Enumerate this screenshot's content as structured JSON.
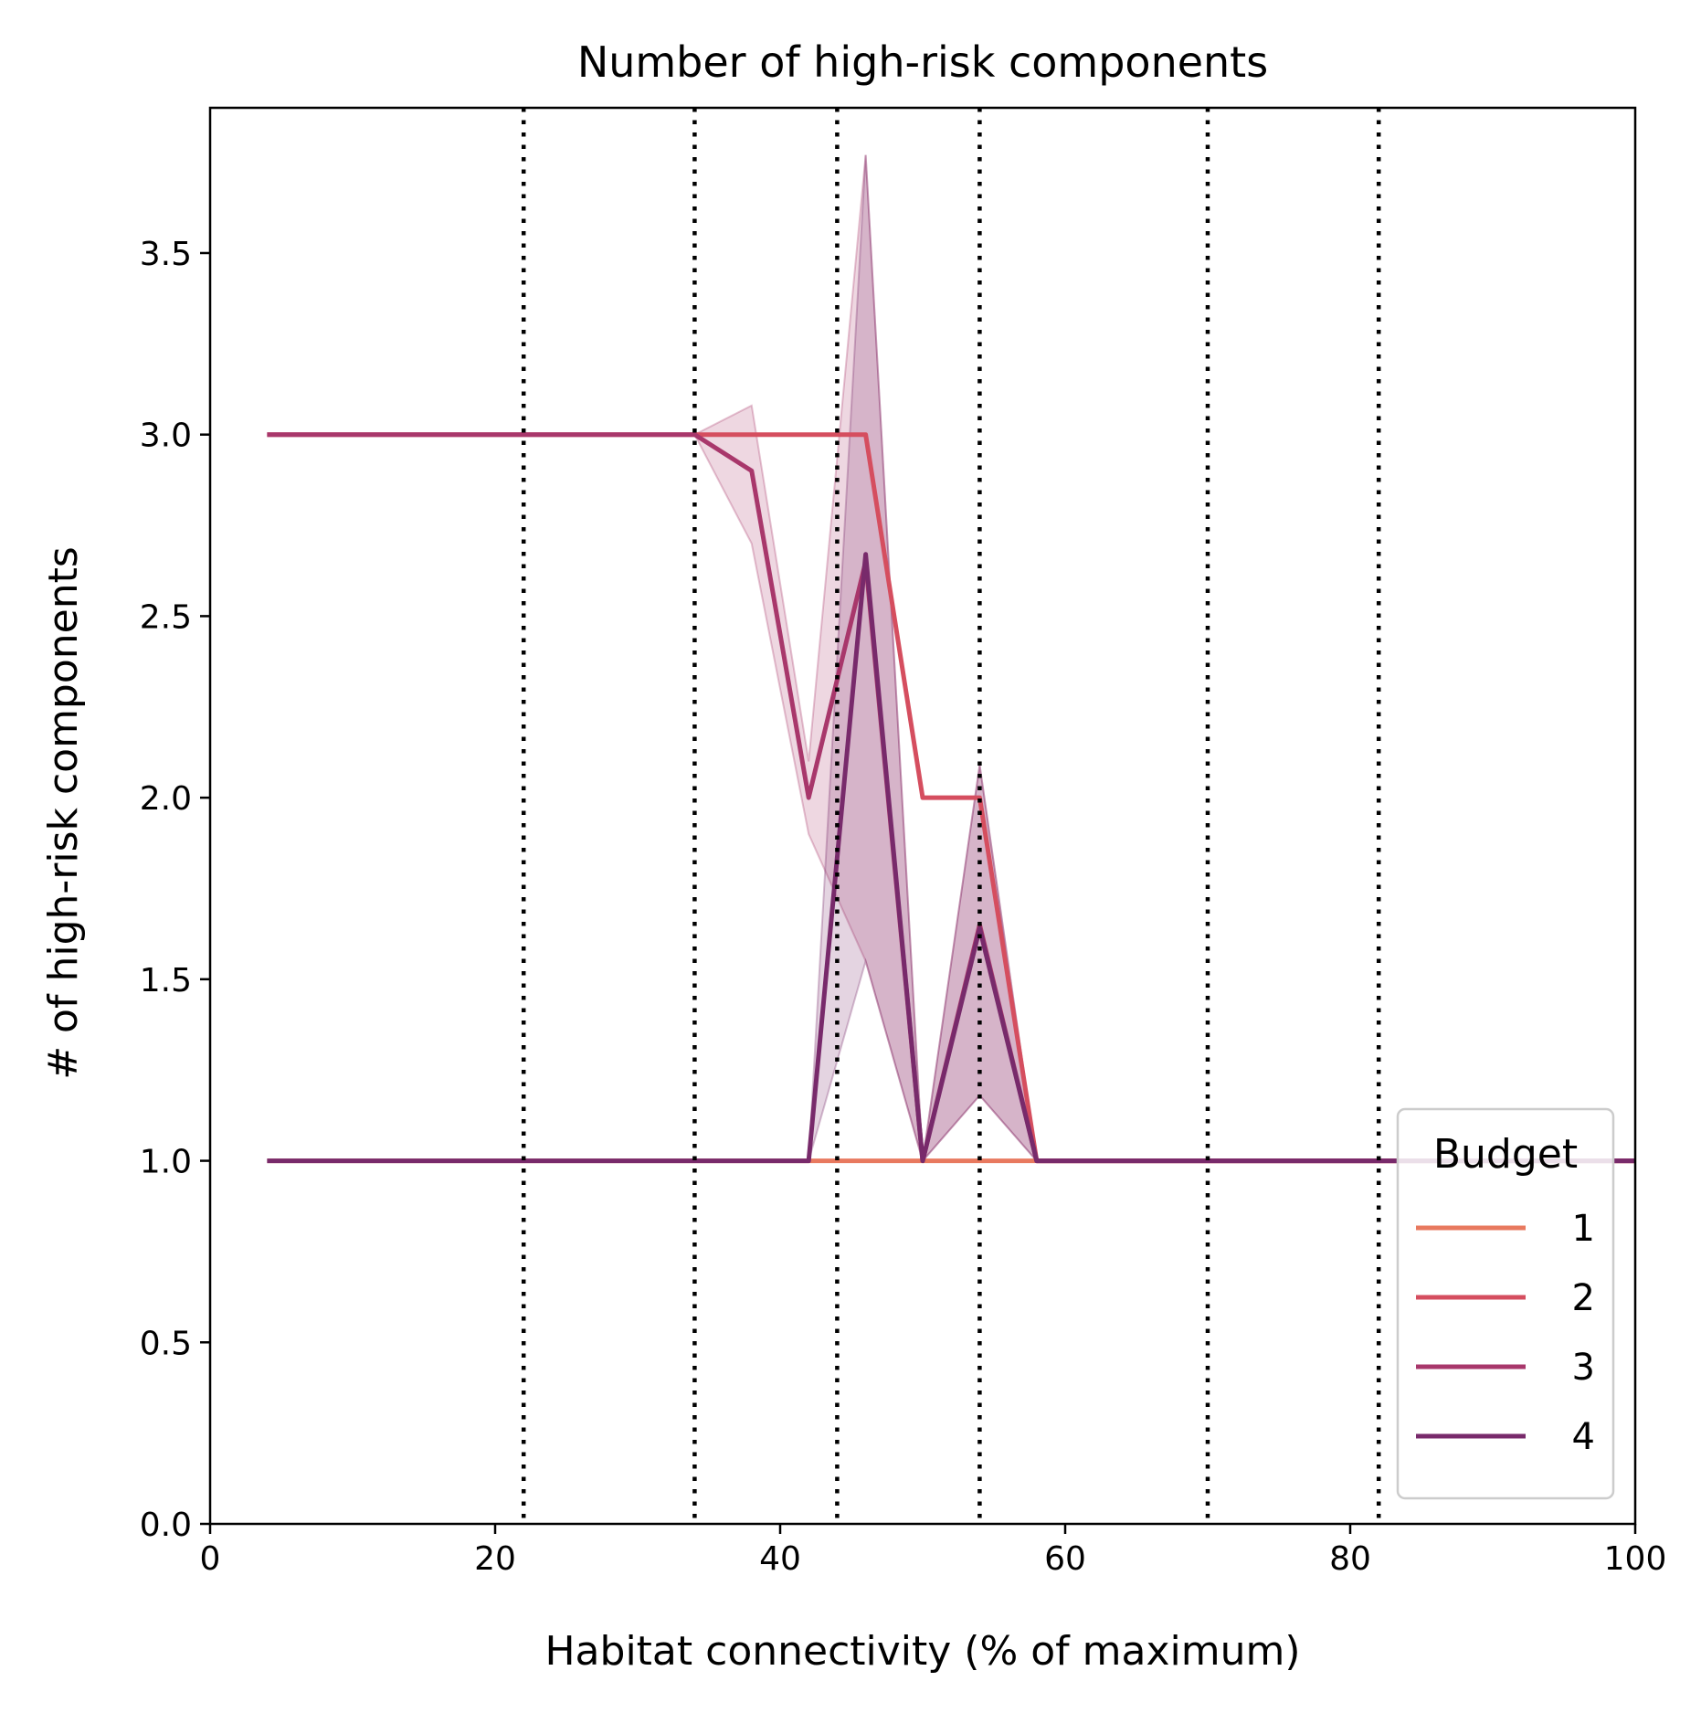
{
  "chart_data": {
    "type": "line",
    "title": "Number of high-risk components",
    "xlabel": "Habitat connectivity (% of maximum)",
    "ylabel": "# of high-risk components",
    "xlim": [
      0,
      100
    ],
    "ylim": [
      0,
      3.9
    ],
    "xticks": [
      {
        "value": 0,
        "label": "0"
      },
      {
        "value": 20,
        "label": "20"
      },
      {
        "value": 40,
        "label": "40"
      },
      {
        "value": 60,
        "label": "60"
      },
      {
        "value": 80,
        "label": "80"
      },
      {
        "value": 100,
        "label": "100"
      }
    ],
    "yticks": [
      {
        "value": 0.0,
        "label": "0.0"
      },
      {
        "value": 0.5,
        "label": "0.5"
      },
      {
        "value": 1.0,
        "label": "1.0"
      },
      {
        "value": 1.5,
        "label": "1.5"
      },
      {
        "value": 2.0,
        "label": "2.0"
      },
      {
        "value": 2.5,
        "label": "2.5"
      },
      {
        "value": 3.0,
        "label": "3.0"
      },
      {
        "value": 3.5,
        "label": "3.5"
      }
    ],
    "vlines": [
      22,
      34,
      44,
      54,
      70,
      82
    ],
    "grid": false,
    "legend": {
      "title": "Budget",
      "position": "lower-right"
    },
    "series": [
      {
        "name": "1",
        "color": "#e8795f",
        "x": [
          4,
          34,
          38,
          42,
          46,
          50,
          54,
          58,
          100
        ],
        "y": [
          1,
          1,
          1,
          1,
          1,
          1,
          1,
          1,
          1
        ]
      },
      {
        "name": "2",
        "color": "#d54e5f",
        "x": [
          4,
          34,
          38,
          42,
          46,
          50,
          54,
          58,
          100
        ],
        "y": [
          3,
          3,
          3,
          3,
          3,
          2,
          2,
          1,
          1
        ]
      },
      {
        "name": "3",
        "color": "#a8376b",
        "x": [
          4,
          34,
          38,
          42,
          46,
          50,
          54,
          58,
          100
        ],
        "y": [
          3,
          3,
          2.9,
          2,
          2.65,
          1,
          1.65,
          1,
          1
        ],
        "ci_low": [
          3,
          3,
          2.7,
          1.9,
          1.55,
          1,
          1.18,
          1,
          1
        ],
        "ci_high": [
          3,
          3,
          3.08,
          2.1,
          3.77,
          1,
          2.09,
          1,
          1
        ]
      },
      {
        "name": "4",
        "color": "#782a6b",
        "x": [
          4,
          34,
          38,
          42,
          46,
          50,
          54,
          58,
          100
        ],
        "y": [
          1,
          1,
          1,
          1,
          2.67,
          1,
          1.64,
          1,
          1
        ],
        "ci_low": [
          1,
          1,
          1,
          1,
          1.55,
          1,
          1.18,
          1,
          1
        ],
        "ci_high": [
          1,
          1,
          1,
          1,
          3.77,
          1,
          2.09,
          1,
          1
        ]
      }
    ]
  }
}
